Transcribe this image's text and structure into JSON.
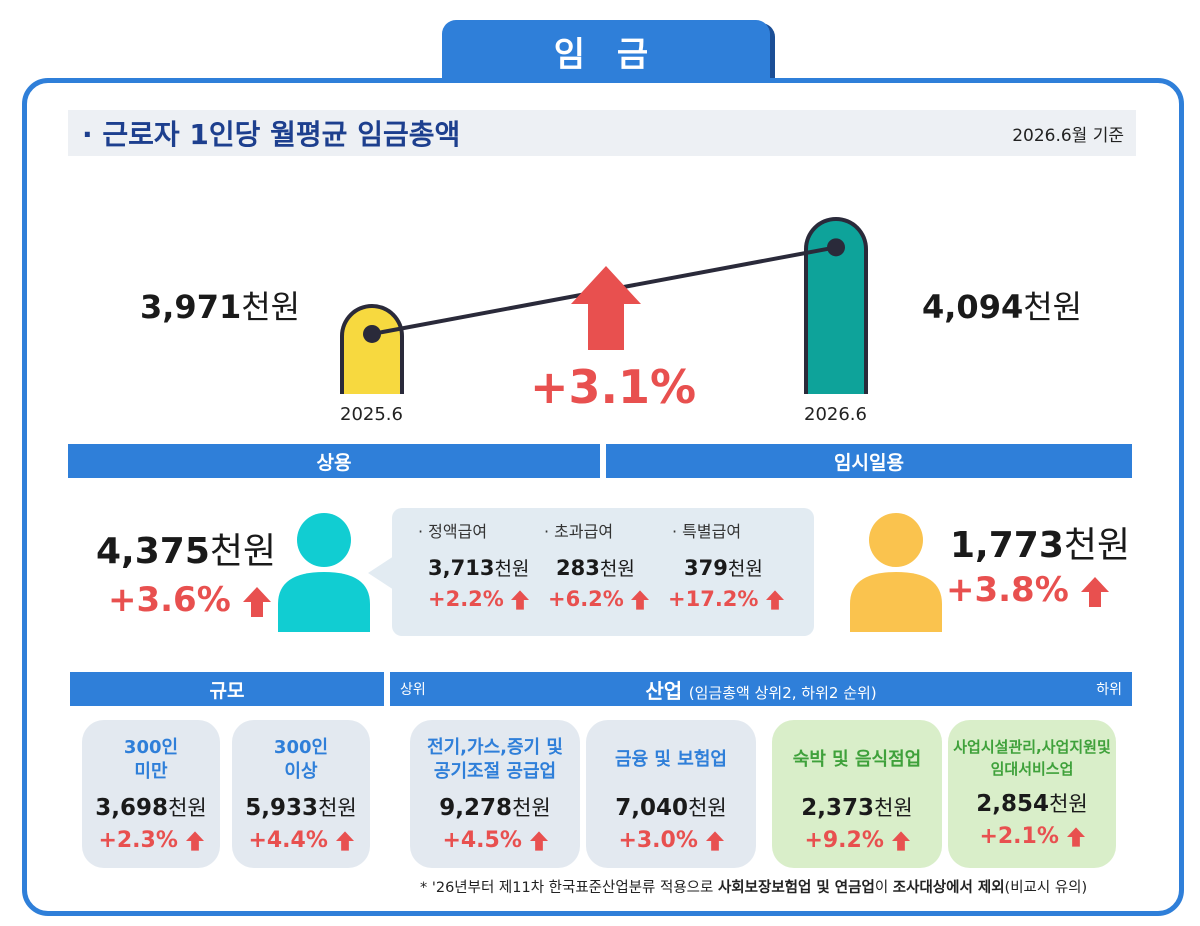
{
  "page_title": "임 금",
  "subheader": {
    "title": "· 근로자 1인당 월평균 임금총액",
    "reference": "2026.6월 기준"
  },
  "chart_data": {
    "type": "bar",
    "categories": [
      "2025.6",
      "2026.6"
    ],
    "values": [
      3971,
      4094
    ],
    "value_labels": [
      "3,971",
      "4,094"
    ],
    "unit": "천원",
    "change": "+3.1%",
    "colors": [
      "#f7d93f",
      "#0ea39a"
    ]
  },
  "regular": {
    "label": "상용",
    "value": "4,375",
    "unit": "천원",
    "change": "+3.6%",
    "components": [
      {
        "label": "· 정액급여",
        "value": "3,713",
        "unit": "천원",
        "change": "+2.2%"
      },
      {
        "label": "· 초과급여",
        "value": "283",
        "unit": "천원",
        "change": "+6.2%"
      },
      {
        "label": "· 특별급여",
        "value": "379",
        "unit": "천원",
        "change": "+17.2%"
      }
    ]
  },
  "temporary": {
    "label": "임시일용",
    "value": "1,773",
    "unit": "천원",
    "change": "+3.8%"
  },
  "size": {
    "label": "규모",
    "cards": [
      {
        "name_lines": [
          "300인",
          "미만"
        ],
        "value": "3,698",
        "unit": "천원",
        "change": "+2.3%"
      },
      {
        "name_lines": [
          "300인",
          "이상"
        ],
        "value": "5,933",
        "unit": "천원",
        "change": "+4.4%"
      }
    ]
  },
  "industry": {
    "label": "산업",
    "sub": "(임금총액 상위2, 하위2 순위)",
    "left_tag": "상위",
    "right_tag": "하위",
    "cards": [
      {
        "name_lines": [
          "전기,가스,증기 및",
          "공기조절 공급업"
        ],
        "value": "9,278",
        "unit": "천원",
        "change": "+4.5%"
      },
      {
        "name_lines": [
          "금융 및 보험업"
        ],
        "value": "7,040",
        "unit": "천원",
        "change": "+3.0%"
      },
      {
        "name_lines": [
          "숙박 및 음식점업"
        ],
        "value": "2,373",
        "unit": "천원",
        "change": "+9.2%"
      },
      {
        "name_lines": [
          "사업시설관리,사업지원및",
          "임대서비스업"
        ],
        "value": "2,854",
        "unit": "천원",
        "change": "+2.1%"
      }
    ]
  },
  "footnote": {
    "pre": "* '26년부터 제11차 한국표준산업분류 적용으로 ",
    "bold1": "사회보장보험업 및 연금업",
    "mid": "이 ",
    "bold2": "조사대상에서 제외",
    "post": "(비교시 유의)"
  },
  "colors": {
    "accent": "#2f7fd9",
    "up": "#e8504f",
    "regular_person": "#11cdd2",
    "temp_person": "#fac34e"
  }
}
